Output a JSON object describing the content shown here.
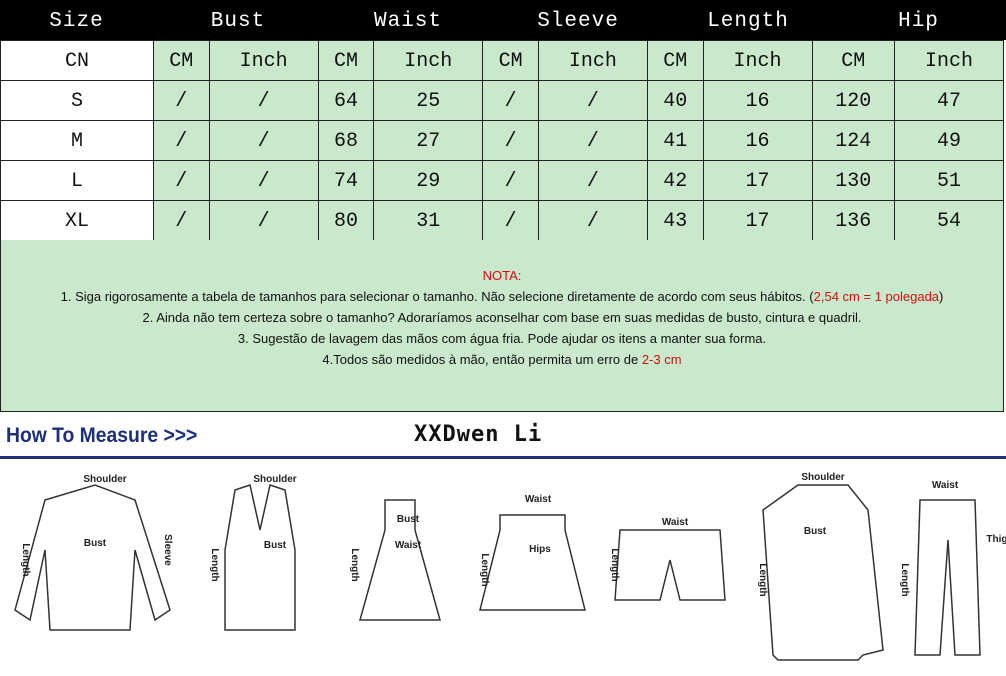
{
  "header": [
    "Size",
    "Bust",
    "Waist",
    "Sleeve",
    "Length",
    "Hip"
  ],
  "units_row": {
    "label": "CN",
    "units": [
      "CM",
      "Inch",
      "CM",
      "Inch",
      "CM",
      "Inch",
      "CM",
      "Inch",
      "CM",
      "Inch"
    ]
  },
  "rows": [
    {
      "size": "S",
      "values": [
        "/",
        "/",
        "64",
        "25",
        "/",
        "/",
        "40",
        "16",
        "120",
        "47"
      ]
    },
    {
      "size": "M",
      "values": [
        "/",
        "/",
        "68",
        "27",
        "/",
        "/",
        "41",
        "16",
        "124",
        "49"
      ]
    },
    {
      "size": "L",
      "values": [
        "/",
        "/",
        "74",
        "29",
        "/",
        "/",
        "42",
        "17",
        "130",
        "51"
      ]
    },
    {
      "size": "XL",
      "values": [
        "/",
        "/",
        "80",
        "31",
        "/",
        "/",
        "43",
        "17",
        "136",
        "54"
      ]
    }
  ],
  "notes": {
    "title": "NOTA:",
    "line1": "1. Siga rigorosamente a tabela de tamanhos para selecionar o tamanho. Não selecione diretamente de acordo com seus hábitos. (",
    "line1_red": "2,54 cm = 1 polegada",
    "line1_end": ")",
    "line2": "2. Ainda não tem certeza sobre o tamanho? Adoraríamos aconselhar com base em suas medidas de busto, cintura e quadril.",
    "line3": "3. Sugestão de lavagem das mãos com água fria. Pode ajudar os itens a manter sua forma.",
    "line4": "4.Todos são medidos à mão, então permita um erro de ",
    "line4_red": "2-3 cm"
  },
  "how_to_measure": "How To Measure >>>",
  "brand": "XXDwen Li",
  "illustrations": [
    {
      "item": "blouse",
      "labels": [
        "Shoulder",
        "Bust",
        "Sleeve",
        "Length"
      ]
    },
    {
      "item": "tank-top",
      "labels": [
        "Shoulder",
        "Bust",
        "Length"
      ]
    },
    {
      "item": "dress",
      "labels": [
        "Bust",
        "Waist",
        "Length"
      ]
    },
    {
      "item": "skirt",
      "labels": [
        "Waist",
        "Hips",
        "Length"
      ]
    },
    {
      "item": "shorts",
      "labels": [
        "Waist",
        "Length"
      ]
    },
    {
      "item": "coat",
      "labels": [
        "Shoulder",
        "Bust",
        "Length"
      ]
    },
    {
      "item": "pants",
      "labels": [
        "Waist",
        "Thigh",
        "Length"
      ]
    }
  ],
  "colors": {
    "header_bg": "#000000",
    "cell_bg": "#c9e8cc",
    "note_red": "#d01010",
    "measure_blue": "#1d2f7a"
  }
}
